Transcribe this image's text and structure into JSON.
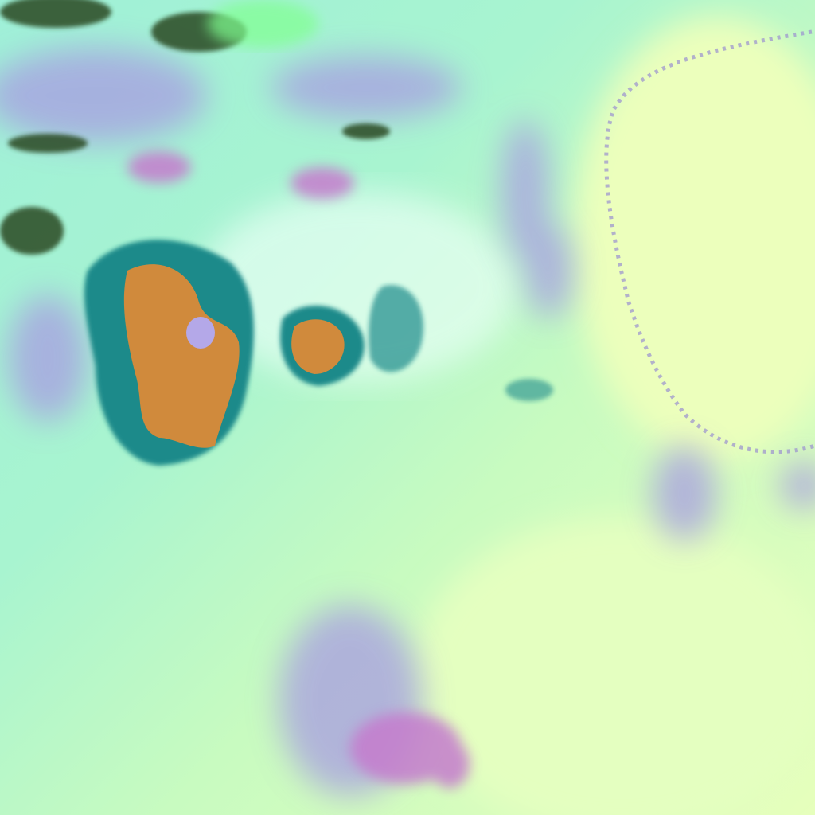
{
  "image": {
    "kind": "false-color satellite imagery",
    "colors": {
      "background_cyan": "#a6f2d6",
      "background_yellow": "#e8ffbe",
      "purple_haze": "#a59ae0",
      "magenta": "#c47ccc",
      "orange_core": "#d08a3c",
      "teal_edge": "#1a8a8a",
      "dark_green": "#2a4a20",
      "bright_green": "#80ff90"
    }
  }
}
